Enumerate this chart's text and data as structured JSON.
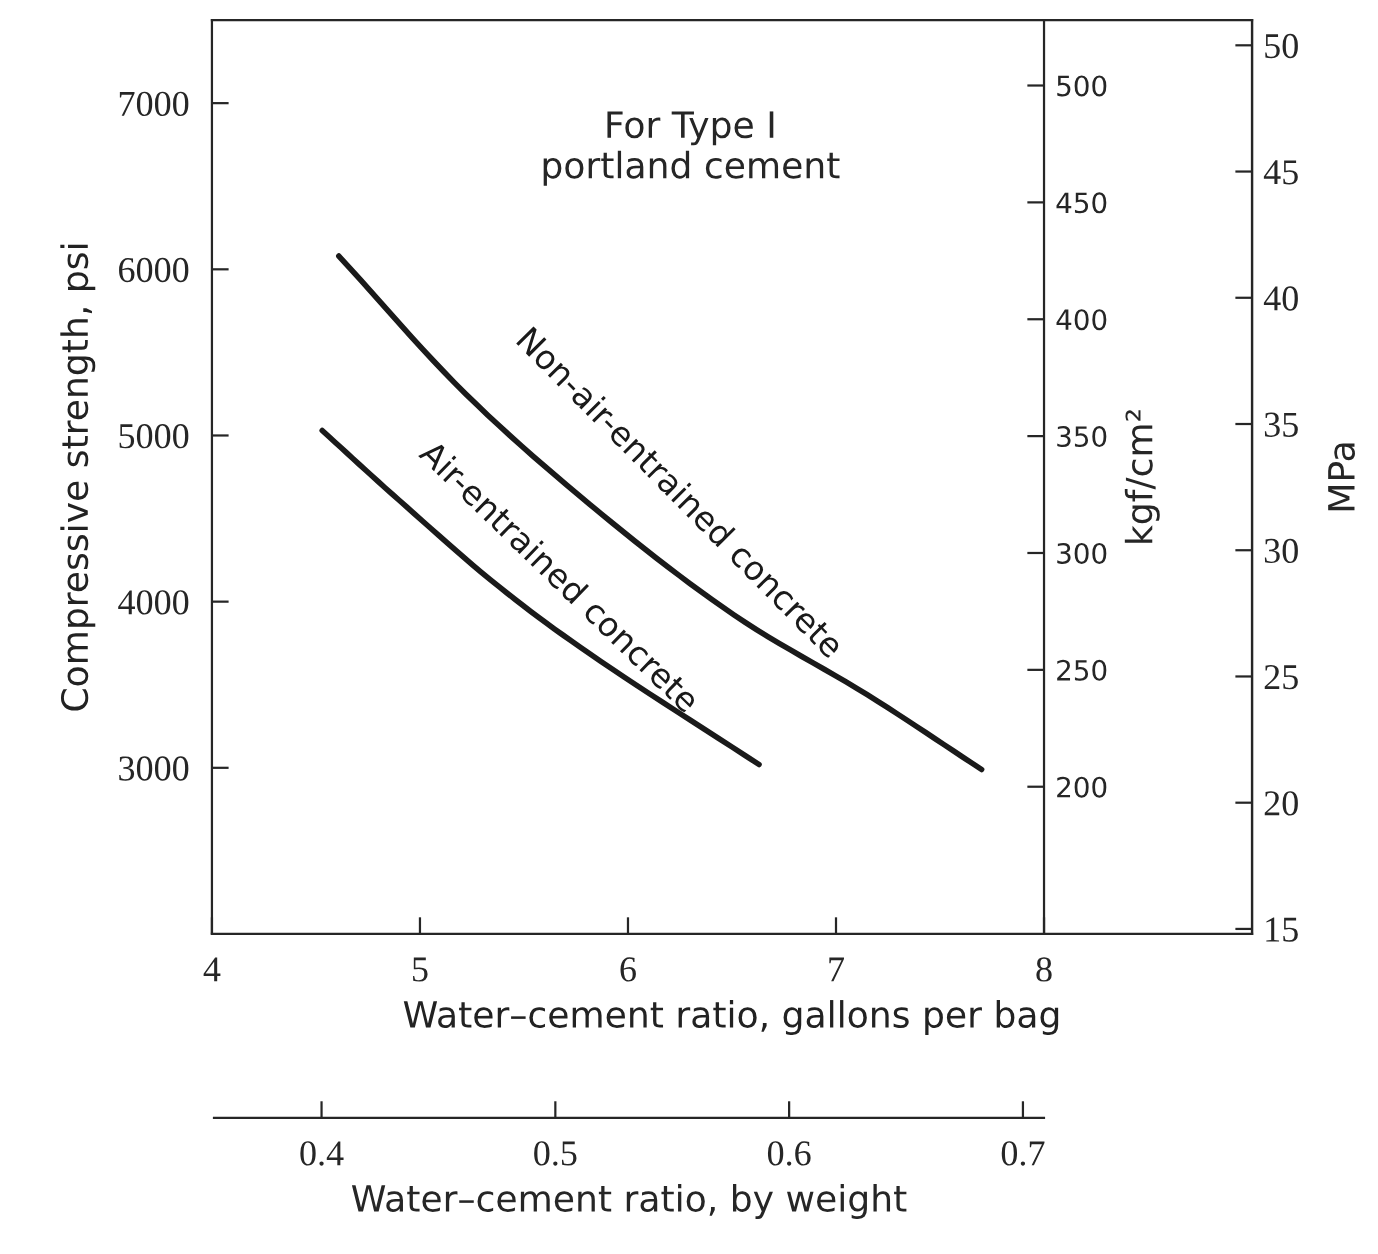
{
  "chart_data": {
    "type": "line",
    "xlabel": "Water–cement ratio, gallons per bag",
    "ylabel": "Compressive strength, psi",
    "y2label": "kgf/cm²",
    "y3label": "MPa",
    "x2label": "Water–cement ratio, by weight",
    "annotations": [
      "For Type I\nportland cement"
    ],
    "xlim": [
      4,
      9
    ],
    "xticks": [
      4,
      5,
      6,
      7,
      8
    ],
    "ylim": [
      2000,
      7500
    ],
    "yticks": [
      3000,
      4000,
      5000,
      6000,
      7000
    ],
    "y2lim": [
      137,
      528
    ],
    "y2ticks": [
      200,
      250,
      300,
      350,
      400,
      450,
      500
    ],
    "y3lim": [
      14.8,
      51
    ],
    "y3ticks": [
      15,
      20,
      25,
      30,
      35,
      40,
      45,
      50
    ],
    "x2lim": [
      0.354,
      0.709
    ],
    "x2ticks": [
      0.4,
      0.5,
      0.6,
      0.7
    ],
    "grid": false,
    "legend": false,
    "marker": "none",
    "line_style": "solid",
    "series": [
      {
        "name": "Non-air-entrained concrete",
        "color": "#1a1a1a",
        "x": [
          4.61,
          5.22,
          5.87,
          6.51,
          7.15,
          7.7
        ],
        "values": [
          6080,
          5250,
          4530,
          3920,
          3440,
          2990
        ]
      },
      {
        "name": "Air-entrained concrete",
        "color": "#1a1a1a",
        "x": [
          4.53,
          4.9,
          5.38,
          5.87,
          6.63
        ],
        "values": [
          5030,
          4610,
          4090,
          3640,
          3020
        ]
      }
    ]
  }
}
